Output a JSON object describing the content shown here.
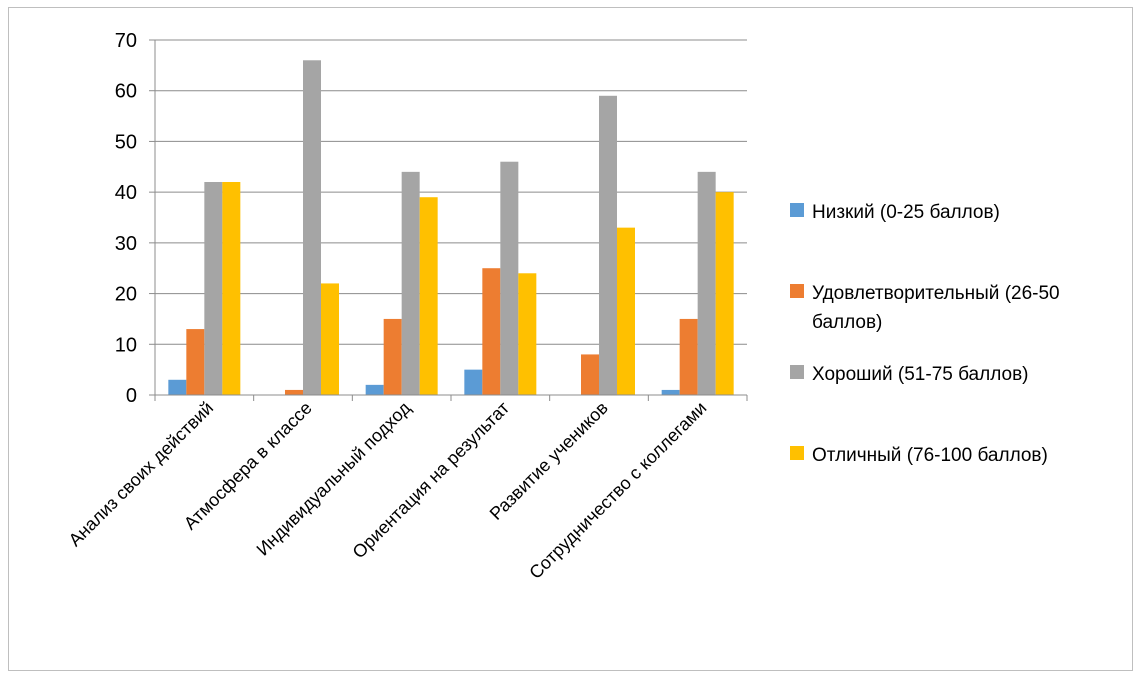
{
  "chart_data": {
    "type": "bar",
    "title": "",
    "xlabel": "",
    "ylabel": "",
    "ylim": [
      0,
      70
    ],
    "yticks": [
      0,
      10,
      20,
      30,
      40,
      50,
      60,
      70
    ],
    "grid": true,
    "legend_position": "right",
    "categories": [
      "Анализ своих действий",
      "Атмосфера в классе",
      "Индивидуальный подход",
      "Ориентация на результат",
      "Развитие учеников",
      "Сотрудничество с коллегами"
    ],
    "series": [
      {
        "name": "Низкий (0-25 баллов)",
        "legend_lines": [
          "Низкий (0-25 баллов)"
        ],
        "color": "#5b9bd5",
        "values": [
          3,
          0,
          2,
          5,
          0,
          1
        ]
      },
      {
        "name": "Удовлетворительный (26-50 баллов)",
        "legend_lines": [
          "Удовлетворительный (26-50",
          "баллов)"
        ],
        "color": "#ed7d31",
        "values": [
          13,
          1,
          15,
          25,
          8,
          15
        ]
      },
      {
        "name": "Хороший (51-75 баллов)",
        "legend_lines": [
          "Хороший (51-75 баллов)"
        ],
        "color": "#a5a5a5",
        "values": [
          42,
          66,
          44,
          46,
          59,
          44
        ]
      },
      {
        "name": "Отличный (76-100 баллов)",
        "legend_lines": [
          "Отличный (76-100 баллов)"
        ],
        "color": "#ffc000",
        "values": [
          42,
          22,
          39,
          24,
          33,
          40
        ]
      }
    ]
  }
}
